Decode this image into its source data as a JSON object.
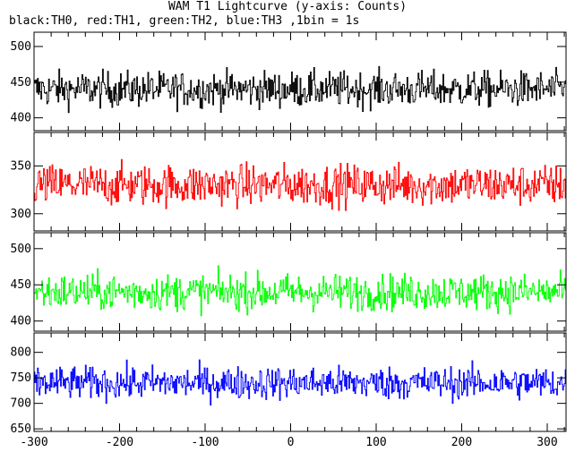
{
  "title": "WAM T1 Lightcurve (y-axis: Counts)",
  "subtitle": "black:TH0, red:TH1, green:TH2, blue:TH3 ,1bin = 1s",
  "chart_data": {
    "type": "line",
    "xlim": [
      -300,
      322
    ],
    "x_ticks": [
      -300,
      -200,
      -100,
      0,
      100,
      200,
      300
    ],
    "x_step": 1,
    "panels": [
      {
        "name": "TH0",
        "color": "#000000",
        "ylim": [
          382,
          520
        ],
        "y_ticks": [
          400,
          450,
          500
        ],
        "mean": 440,
        "noise": 21,
        "min": 385,
        "max": 515
      },
      {
        "name": "TH1",
        "color": "#ff0000",
        "ylim": [
          282,
          385
        ],
        "y_ticks": [
          300,
          350
        ],
        "mean": 330,
        "noise": 18,
        "min": 282,
        "max": 380
      },
      {
        "name": "TH2",
        "color": "#00ff00",
        "ylim": [
          386,
          522
        ],
        "y_ticks": [
          400,
          450,
          500
        ],
        "mean": 440,
        "noise": 21,
        "min": 386,
        "max": 518
      },
      {
        "name": "TH3",
        "color": "#0000ff",
        "ylim": [
          645,
          838
        ],
        "y_ticks": [
          650,
          700,
          750,
          800
        ],
        "mean": 740,
        "noise": 27,
        "min": 645,
        "max": 835
      }
    ]
  }
}
